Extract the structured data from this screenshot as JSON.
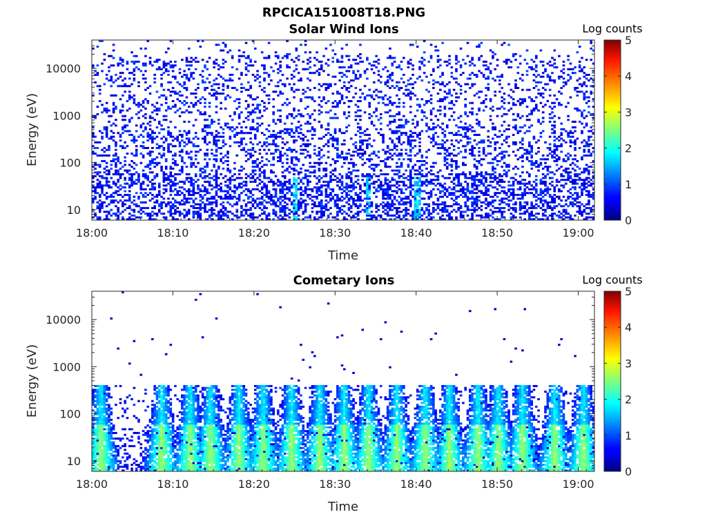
{
  "figure": {
    "file_title": "RPCICA151008T18.PNG"
  },
  "chart_data": [
    {
      "type": "heatmap",
      "title": "Solar Wind Ions",
      "xlabel": "Time",
      "ylabel": "Energy (eV)",
      "x_ticks": [
        "18:00",
        "18:10",
        "18:20",
        "18:30",
        "18:40",
        "18:50",
        "19:00"
      ],
      "y_ticks": [
        "10",
        "100",
        "1000",
        "10000"
      ],
      "y_scale": "log",
      "ylim": [
        6,
        40000
      ],
      "xlim": [
        "18:00",
        "19:02"
      ],
      "colorbar": {
        "label": "Log counts",
        "ticks": [
          "0",
          "1",
          "2",
          "3",
          "4",
          "5"
        ],
        "range": [
          0,
          5
        ],
        "colormap": "jet"
      },
      "grid": false,
      "description_of_data": "Sparse dark-blue single-count noise (~0–1 log counts) scattered at all energies; denser at low energies below ~50 eV with occasional cyan streaks near 18:25, 18:34, 18:40."
    },
    {
      "type": "heatmap",
      "title": "Cometary Ions",
      "xlabel": "Time",
      "ylabel": "Energy (eV)",
      "x_ticks": [
        "18:00",
        "18:10",
        "18:20",
        "18:30",
        "18:40",
        "18:50",
        "19:00"
      ],
      "y_ticks": [
        "10",
        "100",
        "1000",
        "10000"
      ],
      "y_scale": "log",
      "ylim": [
        6,
        40000
      ],
      "xlim": [
        "18:00",
        "19:02"
      ],
      "colorbar": {
        "label": "Log counts",
        "ticks": [
          "0",
          "1",
          "2",
          "3",
          "4",
          "5"
        ],
        "range": [
          0,
          5
        ],
        "colormap": "jet"
      },
      "grid": false,
      "bursts_minutes": [
        1,
        8.5,
        12,
        14.5,
        18,
        21,
        24.5,
        28,
        31,
        34,
        37.5,
        41,
        44,
        47.5,
        50,
        53,
        57,
        60.5
      ],
      "description_of_data": "Periodic low-energy (6–300 eV) ion bursts reaching ~2–2.5 log counts (cyan/yellow), sparse isolated counts at higher energies."
    }
  ]
}
